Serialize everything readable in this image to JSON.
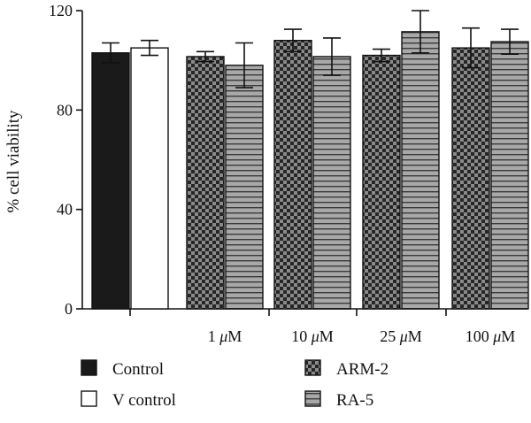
{
  "chart_data": {
    "type": "bar",
    "ylabel": "% cell viability",
    "ylim": [
      0,
      120
    ],
    "yticks": [
      "0",
      "40",
      "80",
      "120"
    ],
    "grid": false,
    "legend_position": "bottom",
    "groups": [
      {
        "label": "",
        "bars": [
          {
            "series": "Control",
            "value": 103,
            "error": 4
          },
          {
            "series": "V control",
            "value": 105,
            "error": 3
          }
        ]
      },
      {
        "label": "1 μM",
        "bars": [
          {
            "series": "ARM-2",
            "value": 101.5,
            "error": 2
          },
          {
            "series": "RA-5",
            "value": 98,
            "error": 9
          }
        ]
      },
      {
        "label": "10 μM",
        "bars": [
          {
            "series": "ARM-2",
            "value": 108,
            "error": 4.5
          },
          {
            "series": "RA-5",
            "value": 101.5,
            "error": 7.5
          }
        ]
      },
      {
        "label": "25 μM",
        "bars": [
          {
            "series": "ARM-2",
            "value": 102,
            "error": 2.5
          },
          {
            "series": "RA-5",
            "value": 111.5,
            "error": 8.5
          }
        ]
      },
      {
        "label": "100 μM",
        "bars": [
          {
            "series": "ARM-2",
            "value": 105,
            "error": 8
          },
          {
            "series": "RA-5",
            "value": 107.5,
            "error": 5
          }
        ]
      }
    ],
    "legend": [
      {
        "series": "Control",
        "style": "solid-black"
      },
      {
        "series": "ARM-2",
        "style": "checker"
      },
      {
        "series": "V control",
        "style": "white"
      },
      {
        "series": "RA-5",
        "style": "horizontal-stripes"
      }
    ],
    "colors": {
      "Control": "#1a1a1a",
      "V control": "#ffffff",
      "ARM-2_dark": "#2b2b2b",
      "ARM-2_light": "#8a8a8a",
      "RA-5_stripe": "#3a3a3a",
      "RA-5_fill": "#a8a8a8"
    }
  }
}
